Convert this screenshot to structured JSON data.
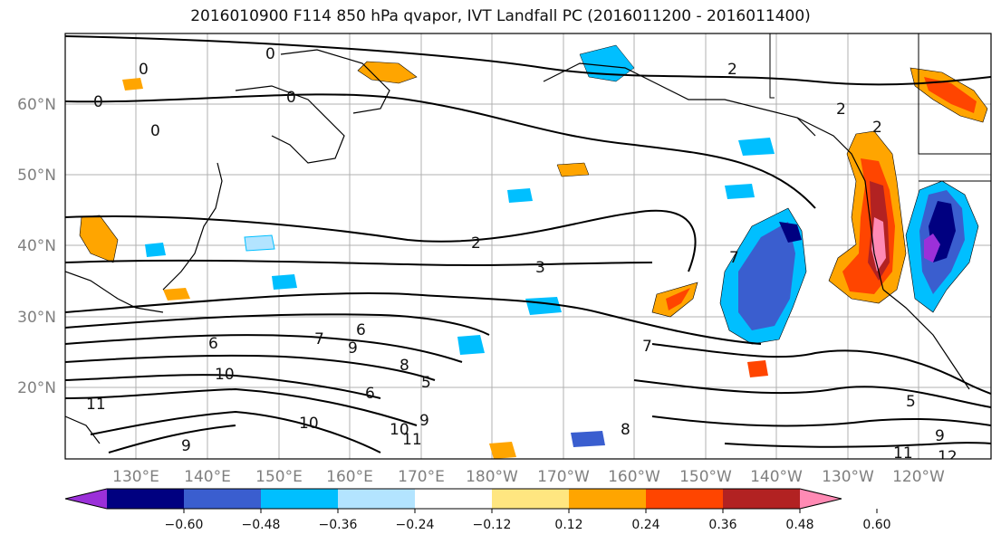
{
  "title": "2016010900 F114 850 hPa qvapor, IVT Landfall PC (2016011200 - 2016011400)",
  "lat_labels": [
    "60°N",
    "50°N",
    "40°N",
    "30°N",
    "20°N"
  ],
  "lon_labels": [
    "130°E",
    "140°E",
    "150°E",
    "160°E",
    "170°E",
    "180°W",
    "170°W",
    "160°W",
    "150°W",
    "140°W",
    "130°W",
    "120°W"
  ],
  "colorbar": {
    "colors": [
      "#9b30d9",
      "#000080",
      "#3a5ecf",
      "#00bfff",
      "#b3e4ff",
      "#ffffff",
      "#ffe680",
      "#ffa500",
      "#ff4500",
      "#b22222",
      "#ff8ab4"
    ],
    "tick_labels": [
      "−0.60",
      "−0.48",
      "−0.36",
      "−0.24",
      "−0.12",
      "0.12",
      "0.24",
      "0.36",
      "0.48",
      "0.60"
    ]
  },
  "contour_labels": [
    "0",
    "0",
    "0",
    "0",
    "0",
    "2",
    "2",
    "2",
    "2",
    "3",
    "6",
    "6",
    "7",
    "7",
    "8",
    "9",
    "10",
    "10",
    "10",
    "11",
    "11",
    "9",
    "5",
    "6",
    "7",
    "8",
    "9",
    "11",
    "12",
    "9",
    "5"
  ]
}
